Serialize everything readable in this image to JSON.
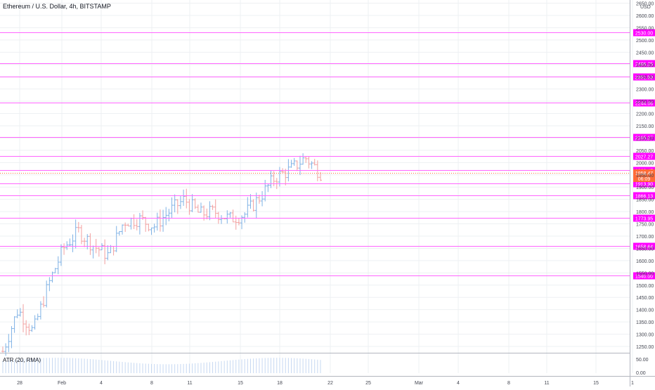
{
  "header": {
    "symbol": "Ethereum / U.S. Dollar, 4h, BITSTAMP",
    "indicator": "ATR (20, RMA)",
    "currency": "USD"
  },
  "colors": {
    "up": "#7fb2e5",
    "down": "#f2a0a0",
    "level_line": "#ff66ff",
    "level_label_bg": "#ff00ff",
    "last_price_bg": "#ff6a39",
    "grid": "#eef0f3",
    "axis_text": "#434651"
  },
  "chart_data": {
    "type": "bar",
    "title": "Ethereum / U.S. Dollar, 4h, BITSTAMP",
    "ylabel": "USD",
    "ylim": [
      1200,
      2650
    ],
    "y_ticks": [
      1250,
      1300,
      1350,
      1400,
      1450,
      1500,
      1550,
      1600,
      1650,
      1700,
      1750,
      1800,
      1850,
      1900,
      1950,
      2000,
      2050,
      2100,
      2150,
      2200,
      2250,
      2300,
      2350,
      2400,
      2450,
      2500,
      2550,
      2600,
      2650
    ],
    "x_ticks": [
      "28",
      "Feb",
      "4",
      "8",
      "11",
      "15",
      "18",
      "22",
      "25",
      "Mar",
      "4",
      "8",
      "11",
      "15",
      "1"
    ],
    "grid": "on",
    "horizontal_levels": [
      2530.0,
      2406.25,
      2351.53,
      2244.06,
      2105.27,
      2027.27,
      1968.47,
      1913.9,
      1866.13,
      1773.95,
      1658.64,
      1540.0
    ],
    "last_price": {
      "value": 1958.47,
      "countdown": "06:09"
    },
    "price_series": [
      {
        "x": "28",
        "y": 1230
      },
      {
        "x": "30",
        "y": 1400
      },
      {
        "x": "Feb",
        "y": 1310
      },
      {
        "x": "2",
        "y": 1500
      },
      {
        "x": "3",
        "y": 1650
      },
      {
        "x": "5",
        "y": 1720
      },
      {
        "x": "6",
        "y": 1660
      },
      {
        "x": "7",
        "y": 1620
      },
      {
        "x": "8",
        "y": 1760
      },
      {
        "x": "9",
        "y": 1770
      },
      {
        "x": "10",
        "y": 1740
      },
      {
        "x": "11",
        "y": 1800
      },
      {
        "x": "12",
        "y": 1850
      },
      {
        "x": "13",
        "y": 1790
      },
      {
        "x": "14",
        "y": 1800
      },
      {
        "x": "15",
        "y": 1770
      },
      {
        "x": "16",
        "y": 1790
      },
      {
        "x": "17",
        "y": 1860
      },
      {
        "x": "18",
        "y": 1940
      },
      {
        "x": "19",
        "y": 1970
      },
      {
        "x": "20",
        "y": 2020
      },
      {
        "x": "21",
        "y": 1958
      }
    ],
    "atr_ticks": [
      50.0,
      0.0
    ]
  }
}
